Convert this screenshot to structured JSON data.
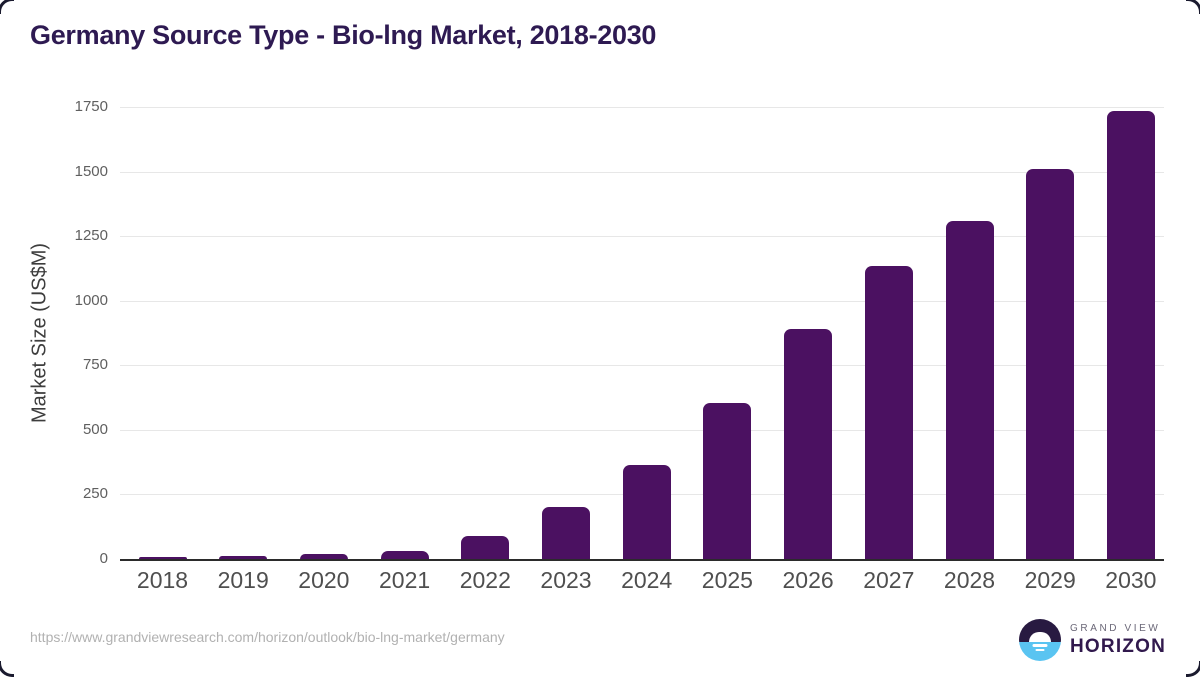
{
  "card": {
    "title": "Germany Source Type - Bio-lng Market, 2018-2030"
  },
  "chart_data": {
    "type": "bar",
    "title": "Germany Source Type - Bio-lng Market, 2018-2030",
    "categories": [
      "2018",
      "2019",
      "2020",
      "2021",
      "2022",
      "2023",
      "2024",
      "2025",
      "2026",
      "2027",
      "2028",
      "2029",
      "2030"
    ],
    "values": [
      8,
      11,
      20,
      30,
      88,
      200,
      365,
      605,
      890,
      1135,
      1310,
      1510,
      1735
    ],
    "xlabel": "",
    "ylabel": "Market Size (US$M)",
    "ylim": [
      0,
      1750
    ],
    "yticks": [
      0,
      250,
      500,
      750,
      1000,
      1250,
      1500,
      1750
    ],
    "grid": "horizontal-only",
    "legend_position": "none",
    "bar_color": "#4b1161"
  },
  "footer": {
    "source_url": "https://www.grandviewresearch.com/horizon/outlook/bio-lng-market/germany",
    "logo": {
      "top_text": "GRAND VIEW",
      "bottom_text": "HORIZON",
      "icon": "horizon-sunrise-icon"
    }
  },
  "colors": {
    "bar": "#4b1161",
    "title": "#2e1a52",
    "axis_text": "#5f5f5f",
    "x_axis_text": "#4f4f4f",
    "gridline": "#e7e7e7",
    "axis_line": "#2b2b2b",
    "url_text": "#b1b1b1",
    "logo_dark": "#281a41",
    "logo_blue": "#5ac4f1",
    "logo_text_top": "#6b6878",
    "logo_text_bottom": "#31194d"
  }
}
